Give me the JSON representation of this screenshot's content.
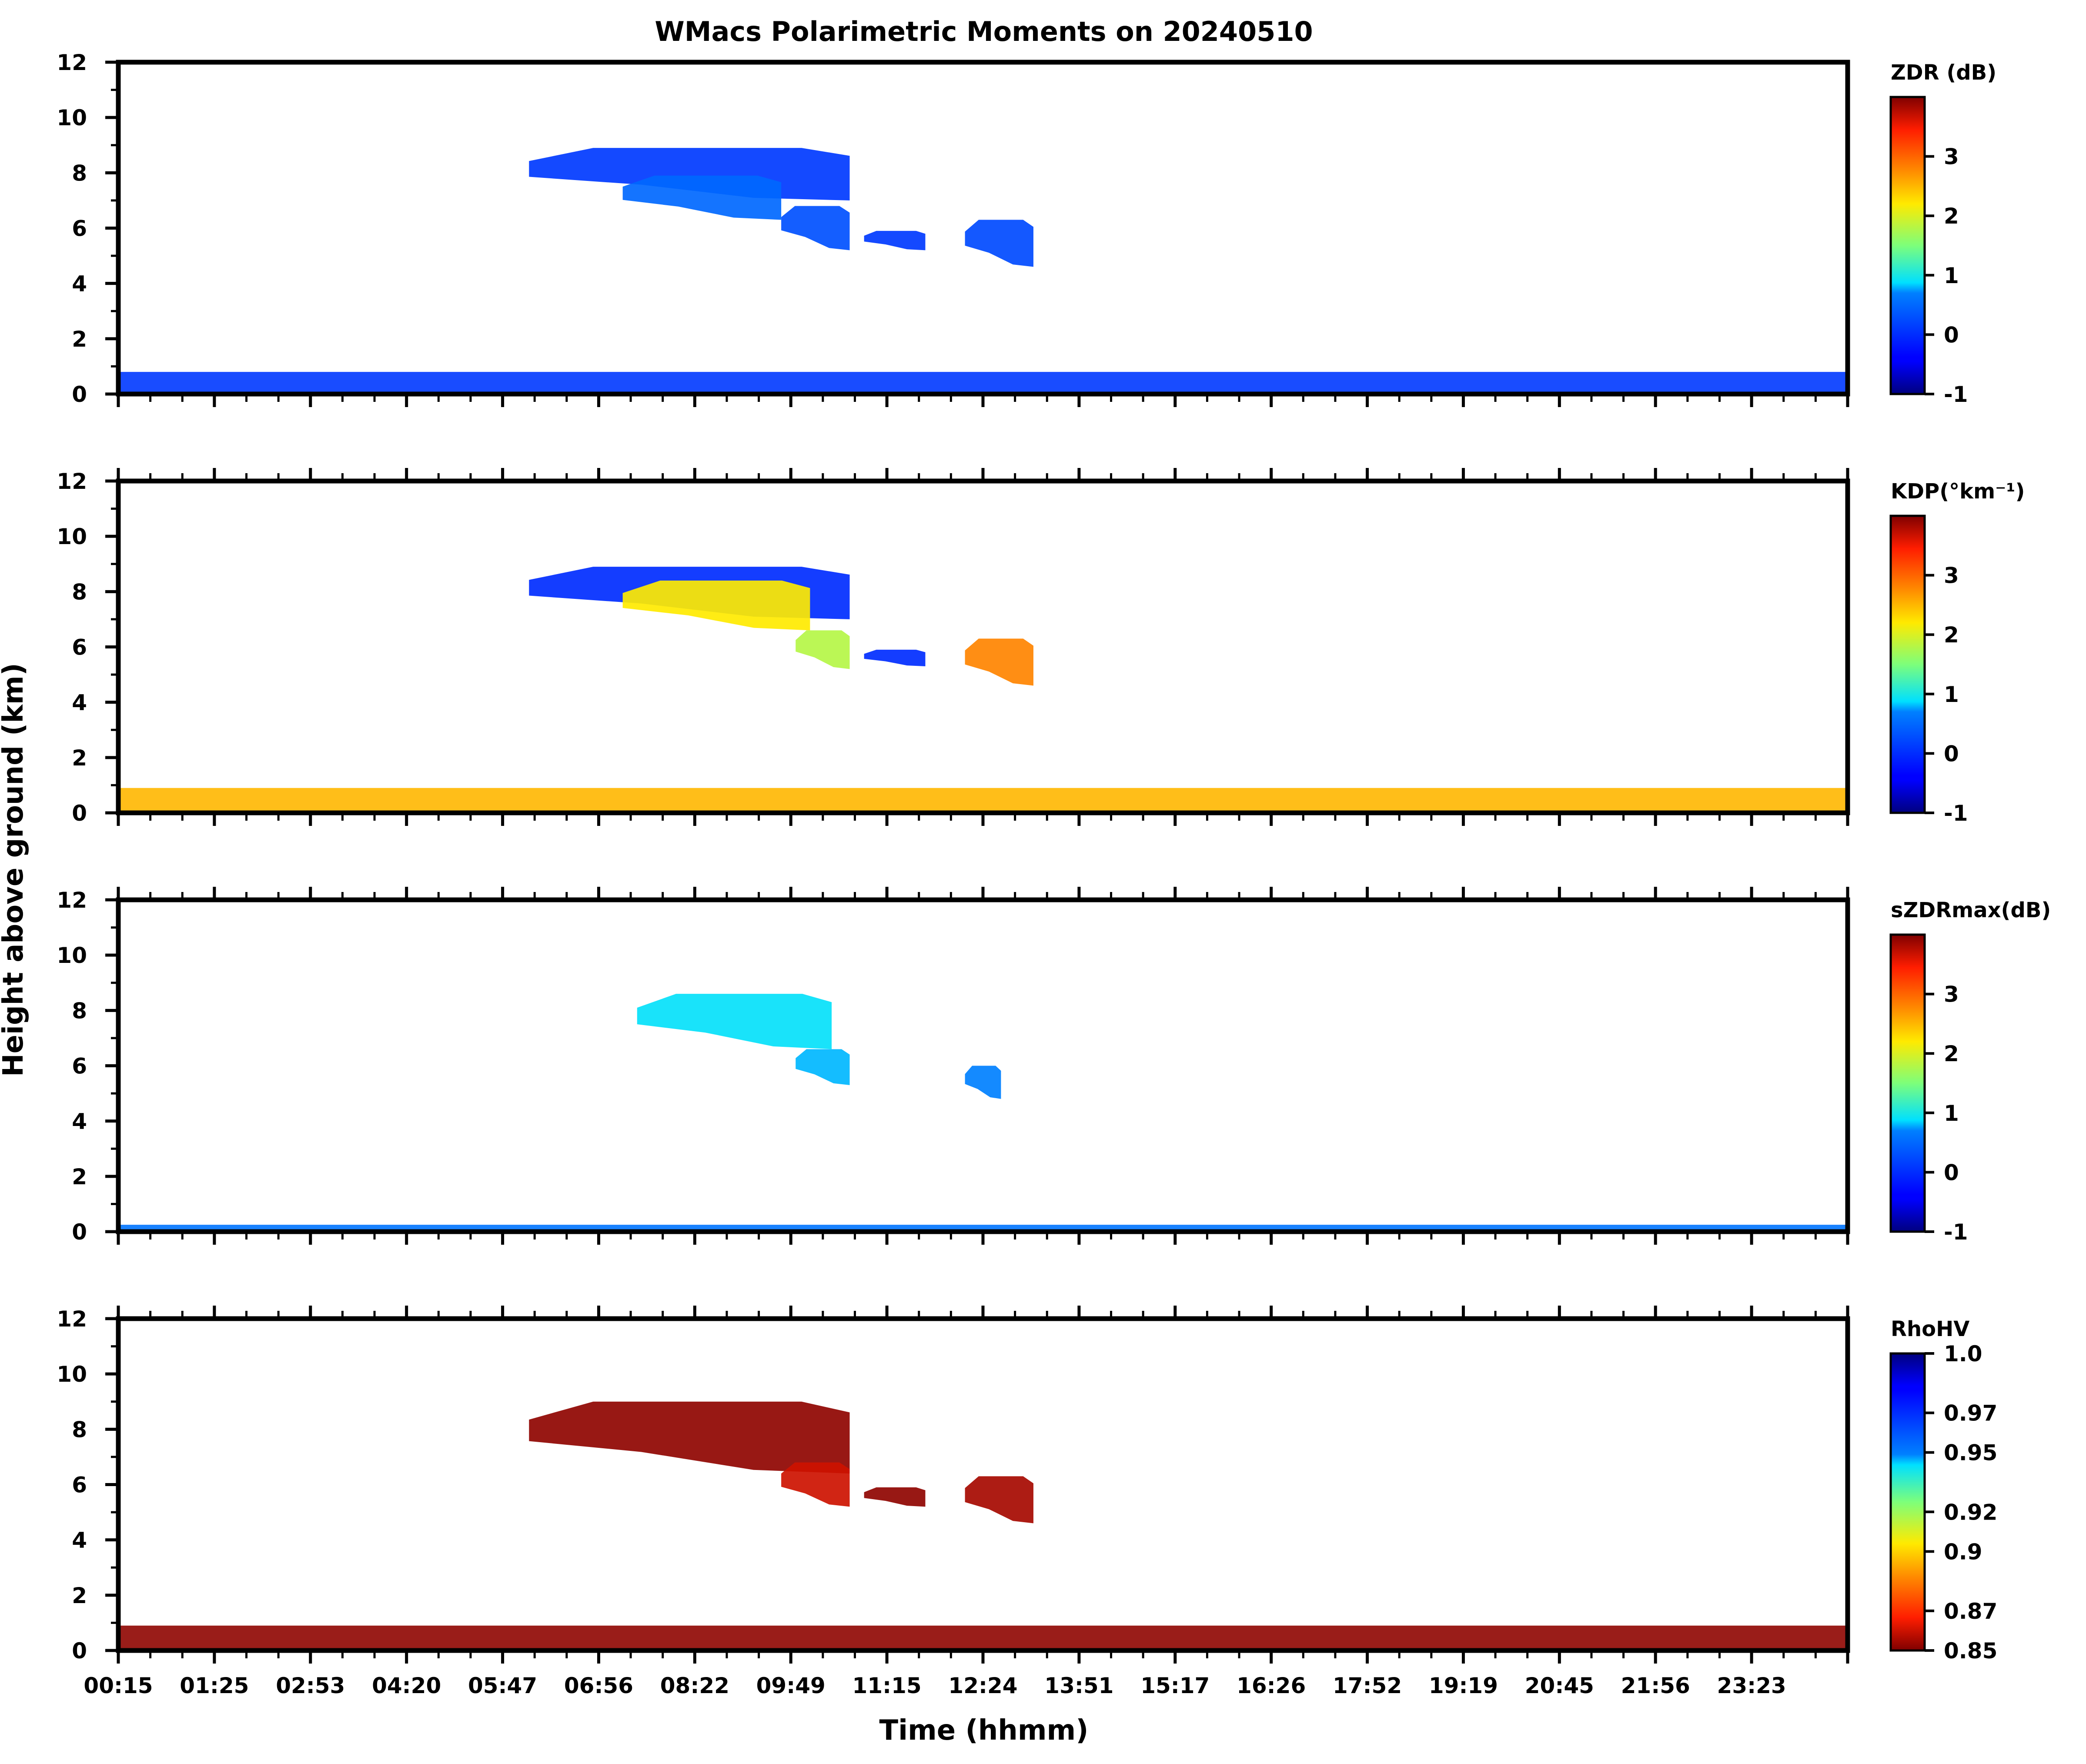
{
  "title": "WMacs Polarimetric Moments on 20240510",
  "shared_ylabel": "Height above ground (km)",
  "chart_data": {
    "type": "heatmap",
    "title": "WMacs Polarimetric Moments on 20240510",
    "xlabel": "Time (hhmm)",
    "ylabel": "Height above ground (km)",
    "x_tick_labels": [
      "00:15",
      "01:25",
      "02:53",
      "04:20",
      "05:47",
      "06:56",
      "08:22",
      "09:49",
      "11:15",
      "12:24",
      "13:51",
      "15:17",
      "16:26",
      "17:52",
      "19:19",
      "20:45",
      "21:56",
      "23:23"
    ],
    "y_ticks": [
      0,
      2,
      4,
      6,
      8,
      10,
      12
    ],
    "ylim": [
      0,
      12
    ],
    "panels": [
      {
        "name": "zdr",
        "colorbar_label": "ZDR (dB)",
        "clim": [
          -1,
          4
        ],
        "colorbar_ticks": [
          -1,
          0,
          1,
          2,
          3
        ],
        "colorbar_tick_labels": [
          "-1",
          "0",
          "1",
          "2",
          "3"
        ],
        "colormap": "jet",
        "features": [
          {
            "kind": "cloud",
            "t0": 5.7,
            "t1": 10.15,
            "z0": 7.0,
            "z1": 8.9,
            "value": 0.1
          },
          {
            "kind": "cloud",
            "t0": 7.0,
            "t1": 9.2,
            "z0": 6.3,
            "z1": 7.9,
            "value": 0.5
          },
          {
            "kind": "cloud",
            "t0": 9.2,
            "t1": 10.15,
            "z0": 5.2,
            "z1": 6.8,
            "value": 0.3
          },
          {
            "kind": "cloud",
            "t0": 10.35,
            "t1": 11.2,
            "z0": 5.2,
            "z1": 5.9,
            "value": 0.1
          },
          {
            "kind": "cloud",
            "t0": 11.75,
            "t1": 12.7,
            "z0": 4.6,
            "z1": 6.3,
            "value": 0.25
          },
          {
            "kind": "ground",
            "t0": 0.0,
            "t1": 24.0,
            "z0": 0.0,
            "z1": 0.8,
            "value": 0.1
          }
        ]
      },
      {
        "name": "kdp",
        "colorbar_label": "KDP(°km⁻¹)",
        "clim": [
          -1,
          4
        ],
        "colorbar_ticks": [
          -1,
          0,
          1,
          2,
          3
        ],
        "colorbar_tick_labels": [
          "-1",
          "0",
          "1",
          "2",
          "3"
        ],
        "colormap": "jet",
        "features": [
          {
            "kind": "cloud",
            "t0": 5.7,
            "t1": 10.15,
            "z0": 7.0,
            "z1": 8.9,
            "value": 0.0
          },
          {
            "kind": "cloud",
            "t0": 7.0,
            "t1": 9.6,
            "z0": 6.6,
            "z1": 8.4,
            "value": 2.2
          },
          {
            "kind": "cloud",
            "t0": 9.4,
            "t1": 10.15,
            "z0": 5.2,
            "z1": 6.6,
            "value": 1.8
          },
          {
            "kind": "cloud",
            "t0": 10.35,
            "t1": 11.2,
            "z0": 5.3,
            "z1": 5.9,
            "value": 0.0
          },
          {
            "kind": "cloud",
            "t0": 11.75,
            "t1": 12.7,
            "z0": 4.6,
            "z1": 6.3,
            "value": 2.8
          },
          {
            "kind": "ground",
            "t0": 0.0,
            "t1": 24.0,
            "z0": 0.0,
            "z1": 0.9,
            "value": 2.5
          }
        ]
      },
      {
        "name": "szdrmax",
        "colorbar_label": "sZDRmax(dB)",
        "clim": [
          -1,
          4
        ],
        "colorbar_ticks": [
          -1,
          0,
          1,
          2,
          3
        ],
        "colorbar_tick_labels": [
          "-1",
          "0",
          "1",
          "2",
          "3"
        ],
        "colormap": "jet",
        "features": [
          {
            "kind": "cloud",
            "t0": 7.2,
            "t1": 9.9,
            "z0": 6.6,
            "z1": 8.6,
            "value": 0.9
          },
          {
            "kind": "cloud",
            "t0": 9.4,
            "t1": 10.15,
            "z0": 5.3,
            "z1": 6.6,
            "value": 0.8
          },
          {
            "kind": "cloud",
            "t0": 11.75,
            "t1": 12.25,
            "z0": 4.8,
            "z1": 6.0,
            "value": 0.7
          },
          {
            "kind": "ground",
            "t0": 0.0,
            "t1": 24.0,
            "z0": 0.0,
            "z1": 0.25,
            "value": 0.6
          }
        ]
      },
      {
        "name": "rhohv",
        "colorbar_label": "RhoHV",
        "clim": [
          0.85,
          1.0
        ],
        "colorbar_ticks": [
          0.85,
          0.87,
          0.9,
          0.92,
          0.95,
          0.97,
          1.0
        ],
        "colorbar_tick_labels": [
          "0.85",
          "0.87",
          "0.9",
          "0.92",
          "0.95",
          "0.97",
          "1.0"
        ],
        "colormap": "jet_r",
        "features": [
          {
            "kind": "cloud",
            "t0": 5.7,
            "t1": 10.15,
            "z0": 6.4,
            "z1": 9.0,
            "value": 0.852
          },
          {
            "kind": "cloud",
            "t0": 9.2,
            "t1": 10.15,
            "z0": 5.2,
            "z1": 6.8,
            "value": 0.86
          },
          {
            "kind": "cloud",
            "t0": 10.35,
            "t1": 11.2,
            "z0": 5.2,
            "z1": 5.9,
            "value": 0.852
          },
          {
            "kind": "cloud",
            "t0": 11.75,
            "t1": 12.7,
            "z0": 4.6,
            "z1": 6.3,
            "value": 0.855
          },
          {
            "kind": "ground",
            "t0": 0.0,
            "t1": 24.0,
            "z0": 0.0,
            "z1": 0.9,
            "value": 0.852
          }
        ]
      }
    ]
  }
}
